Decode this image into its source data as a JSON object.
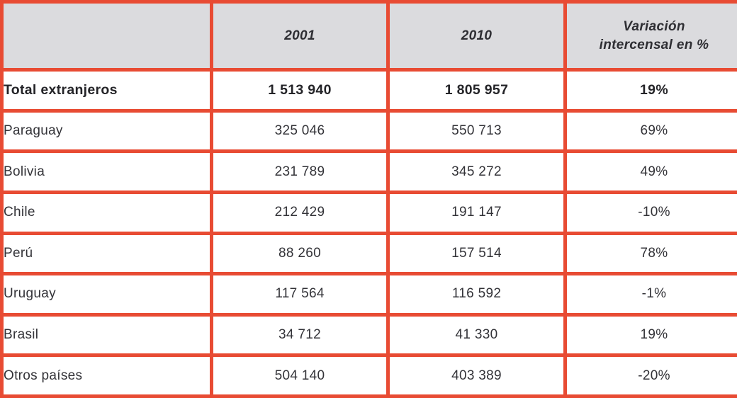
{
  "colors": {
    "border_red": "#e84b33",
    "header_bg": "#dbdbde",
    "text_dark": "#333338"
  },
  "table": {
    "header": {
      "col_country": "",
      "col_2001": "2001",
      "col_2010": "2010",
      "col_variation": "Variación intercensal en %"
    },
    "total": {
      "name": "Total extranjeros",
      "y2001": "1 513 940",
      "y2010": "1 805 957",
      "variation": "19%"
    },
    "rows": [
      {
        "name": "Paraguay",
        "y2001": "325 046",
        "y2010": "550 713",
        "variation": "69%"
      },
      {
        "name": "Bolivia",
        "y2001": "231 789",
        "y2010": "345 272",
        "variation": "49%"
      },
      {
        "name": "Chile",
        "y2001": "212 429",
        "y2010": "191 147",
        "variation": "-10%"
      },
      {
        "name": "Perú",
        "y2001": "88 260",
        "y2010": "157 514",
        "variation": "78%"
      },
      {
        "name": "Uruguay",
        "y2001": "117 564",
        "y2010": "116 592",
        "variation": "-1%"
      },
      {
        "name": "Brasil",
        "y2001": "34 712",
        "y2010": "41 330",
        "variation": "19%"
      },
      {
        "name": "Otros países",
        "y2001": "504 140",
        "y2010": "403 389",
        "variation": "-20%"
      }
    ]
  }
}
